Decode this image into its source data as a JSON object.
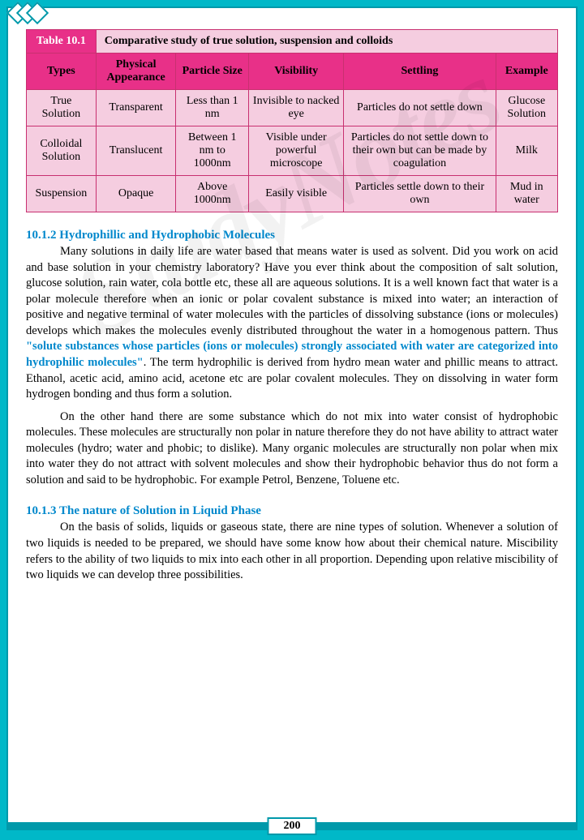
{
  "table": {
    "label": "Table 10.1",
    "title": "Comparative study of true solution, suspension and colloids",
    "headers": [
      "Types",
      "Physical Appearance",
      "Particle Size",
      "Visibility",
      "Settling",
      "Example"
    ],
    "rows": [
      [
        "True Solution",
        "Transparent",
        "Less than 1 nm",
        "Invisible to nacked eye",
        "Particles do not settle down",
        "Glucose Solution"
      ],
      [
        "Colloidal Solution",
        "Translucent",
        "Between 1 nm to 1000nm",
        "Visible under powerful microscope",
        "Particles do not settle down to their own but can be made by coagulation",
        "Milk"
      ],
      [
        "Suspension",
        "Opaque",
        "Above 1000nm",
        "Easily visible",
        "Particles settle down to their own",
        "Mud in water"
      ]
    ],
    "header_bg": "#e83088",
    "body_bg": "#f5cde0",
    "border_color": "#c83070"
  },
  "sections": {
    "s1": {
      "title": "10.1.2 Hydrophillic and Hydrophobic Molecules",
      "p1a": "Many solutions in daily life are water based that means water is used as solvent. Did you work on acid and base solution in your chemistry laboratory? Have you ever think about the composition of salt solution, glucose solution, rain water, cola bottle etc, these all are aqueous solutions. It is a well known fact that water is a polar molecule therefore when an ionic or polar covalent substance is mixed into water; an interaction of positive and negative terminal of water molecules with the particles of dissolving substance (ions or molecules) develops which makes the molecules evenly distributed throughout the water in a homogenous pattern. Thus ",
      "p1quote": "\"solute substances whose particles (ions or molecules) strongly associated with water are categorized into hydrophilic molecules\"",
      "p1b": ". The term hydrophilic is derived from hydro mean water and phillic means to attract. Ethanol, acetic acid, amino acid, acetone etc are polar covalent molecules. They on dissolving in water form hydrogen bonding and thus form a solution.",
      "p2": "On the other hand there are some substance which do not mix into water consist of hydrophobic molecules. These molecules are structurally non polar in nature therefore they do not have ability to attract water molecules (hydro; water and phobic; to dislike). Many organic molecules are structurally non polar when mix into water they do not attract with solvent molecules and show their hydrophobic behavior thus do not form a solution and said to be hydrophobic. For example Petrol, Benzene, Toluene etc."
    },
    "s2": {
      "title": "10.1.3 The nature of Solution in Liquid Phase",
      "p1": "On the basis of solids, liquids or gaseous state, there are nine types of solution. Whenever a solution of two liquids is needed to be prepared, we should have some know how about their chemical nature. Miscibility refers to the ability of two liquids to mix into each other in all proportion. Depending upon relative miscibility of two liquids we can develop three possibilities."
    }
  },
  "watermark": "StudyNotes",
  "page_number": "200",
  "colors": {
    "page_border": "#0099aa",
    "outer_bg": "#00b8c8",
    "heading": "#0088cc"
  }
}
